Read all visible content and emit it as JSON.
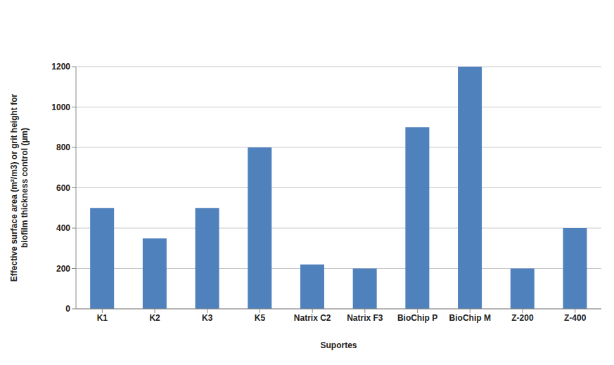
{
  "chart_data": {
    "type": "bar",
    "categories": [
      "K1",
      "K2",
      "K3",
      "K5",
      "Natrix C2",
      "Natrix F3",
      "BioChip P",
      "BioChip M",
      "Z-200",
      "Z-400"
    ],
    "values": [
      500,
      350,
      500,
      800,
      220,
      200,
      900,
      1200,
      200,
      400
    ],
    "color": "#4f81bd",
    "ylim": [
      0,
      1200
    ],
    "yticks": [
      0,
      200,
      400,
      600,
      800,
      1000,
      1200
    ],
    "grid": true,
    "xlabel": "Suportes",
    "ylabel": "Effective surface area (m²/m3) or grit height for biofilm thickness control (µm)"
  }
}
